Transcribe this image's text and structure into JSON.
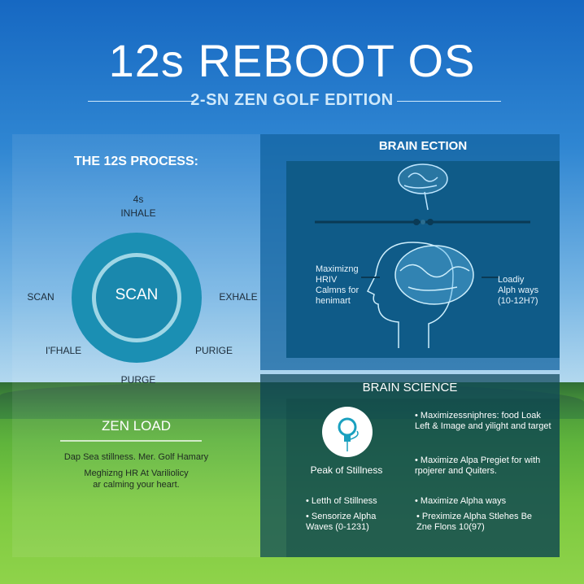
{
  "header": {
    "title": "12s REBOOT OS",
    "subtitle": "2-SN ZEN GOLF EDITION"
  },
  "process": {
    "title": "THE 12S PROCESS:",
    "top_time": "4s",
    "top": "INHALE",
    "right": "EXHALE",
    "bottom_right": "PURIGE",
    "bottom": "PURGE",
    "bottom_left": "I'FHALE",
    "left": "SCAN",
    "center": "SCAN"
  },
  "zen_load": {
    "title": "ZEN LOAD",
    "line1": "Dap Sea stillness. Mer. Golf Hamary",
    "line2": "Meghizng HR At Variliolicy",
    "line3": "ar calming your heart."
  },
  "brain_section": {
    "title": "BRAIN ECTION",
    "left_text": [
      "Maximizng",
      "HRIV",
      "Calmns for",
      "henimart"
    ],
    "right_text": [
      "Loadiy",
      "Alph ways",
      "(10-12H7)"
    ]
  },
  "brain_science": {
    "title": "BRAIN SCIENCE",
    "icon_label": "Peak of Stillness",
    "bullets_right": [
      "Maximizessniphres: food Loak Left & Image and yilight and target",
      "Maximize Alpa Pregiet for with rpojerer and Quiters."
    ],
    "bullets_bottom_left": [
      "Letth of Stillness",
      "Sensorize Alpha Waves (0-1231)"
    ],
    "bullets_bottom_right": [
      "Maximize Alpha ways",
      "Preximize Alpha Stlehes Be Zne Flons 10(97)"
    ]
  },
  "colors": {
    "ring": "#1b8fb3",
    "panel": "#0f5b88",
    "sky": "#1668c2",
    "grass": "#7cc940"
  }
}
